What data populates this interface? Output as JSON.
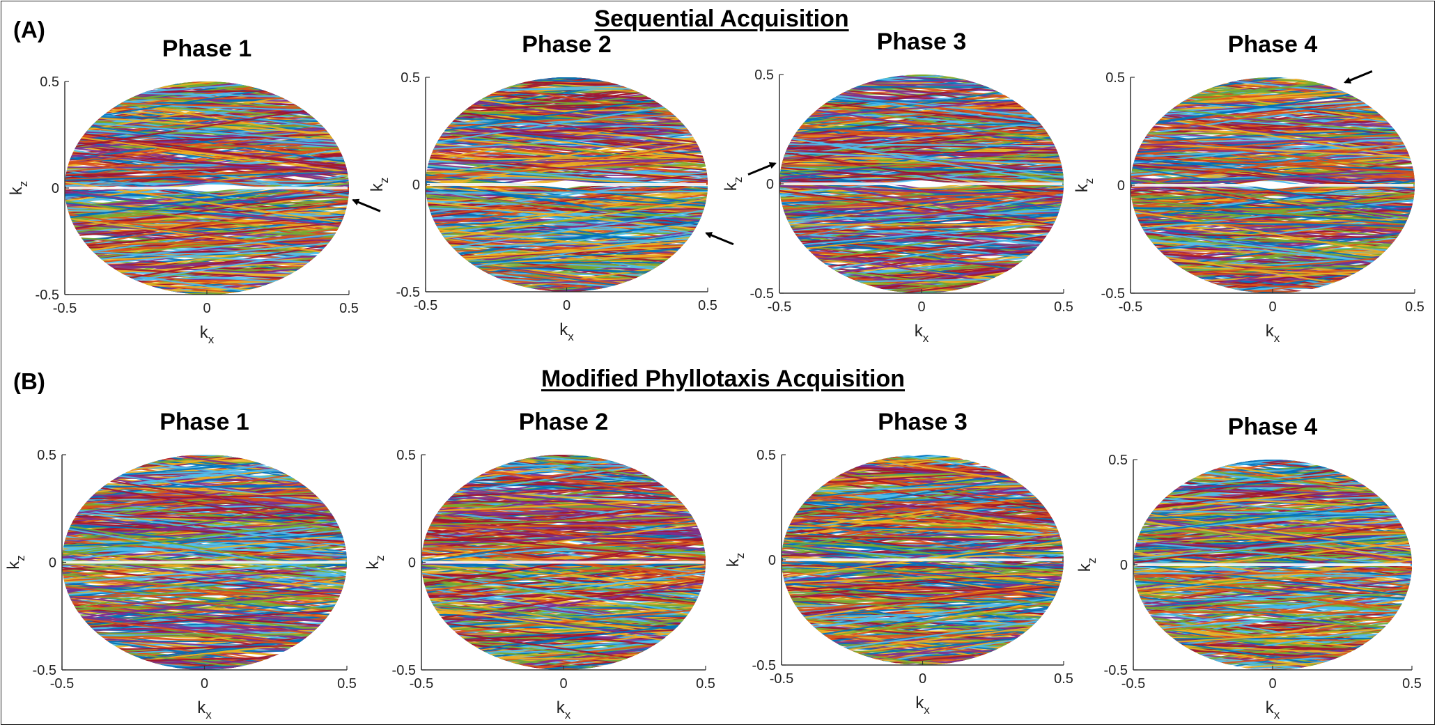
{
  "panels": [
    {
      "label": "(A)",
      "title": "Sequential Acquisition"
    },
    {
      "label": "(B)",
      "title": "Modified Phyllotaxis Acquisition"
    }
  ],
  "colors": [
    "#0072BD",
    "#D95319",
    "#EDB120",
    "#7E2F8E",
    "#77AC30",
    "#4DBEEE",
    "#A2142F"
  ],
  "chart_data": [
    {
      "type": "line",
      "panel": "A",
      "title": "Phase 1",
      "xlabel": "k",
      "xlabel_sub": "x",
      "ylabel": "k",
      "ylabel_sub": "z",
      "xlim": [
        -0.5,
        0.5
      ],
      "ylim": [
        -0.5,
        0.5
      ],
      "xticks": [
        "-0.5",
        "0",
        "0.5"
      ],
      "yticks": [
        "0.5",
        "0",
        "-0.5"
      ],
      "description_kind": "sequential",
      "arrows": [
        {
          "x": 0.5,
          "y": -0.05
        }
      ]
    },
    {
      "type": "line",
      "panel": "A",
      "title": "Phase 2",
      "xlabel": "k",
      "xlabel_sub": "x",
      "ylabel": "k",
      "ylabel_sub": "z",
      "xlim": [
        -0.5,
        0.5
      ],
      "ylim": [
        -0.5,
        0.5
      ],
      "xticks": [
        "-0.5",
        "0",
        "0.5"
      ],
      "yticks": [
        "0.5",
        "0",
        "-0.5"
      ],
      "description_kind": "sequential",
      "arrows": [
        {
          "x": 0.48,
          "y": -0.22
        }
      ]
    },
    {
      "type": "line",
      "panel": "A",
      "title": "Phase 3",
      "xlabel": "k",
      "xlabel_sub": "x",
      "ylabel": "k",
      "ylabel_sub": "z",
      "xlim": [
        -0.5,
        0.5
      ],
      "ylim": [
        -0.5,
        0.5
      ],
      "xticks": [
        "-0.5",
        "0",
        "0.5"
      ],
      "yticks": [
        "0.5",
        "0",
        "-0.5"
      ],
      "description_kind": "sequential",
      "arrows": [
        {
          "x": -0.5,
          "y": 0.1
        }
      ]
    },
    {
      "type": "line",
      "panel": "A",
      "title": "Phase 4",
      "xlabel": "k",
      "xlabel_sub": "x",
      "ylabel": "k",
      "ylabel_sub": "z",
      "xlim": [
        -0.5,
        0.5
      ],
      "ylim": [
        -0.5,
        0.5
      ],
      "xticks": [
        "-0.5",
        "0",
        "0.5"
      ],
      "yticks": [
        "0.5",
        "0",
        "-0.5"
      ],
      "description_kind": "sequential",
      "arrows": [
        {
          "x": 0.24,
          "y": 0.47
        }
      ]
    },
    {
      "type": "line",
      "panel": "B",
      "title": "Phase 1",
      "xlabel": "k",
      "xlabel_sub": "x",
      "ylabel": "k",
      "ylabel_sub": "z",
      "xlim": [
        -0.5,
        0.5
      ],
      "ylim": [
        -0.5,
        0.5
      ],
      "xticks": [
        "-0.5",
        "0",
        "0.5"
      ],
      "yticks": [
        "0.5",
        "0",
        "-0.5"
      ],
      "description_kind": "phyllotaxis",
      "arrows": []
    },
    {
      "type": "line",
      "panel": "B",
      "title": "Phase 2",
      "xlabel": "k",
      "xlabel_sub": "x",
      "ylabel": "k",
      "ylabel_sub": "z",
      "xlim": [
        -0.5,
        0.5
      ],
      "ylim": [
        -0.5,
        0.5
      ],
      "xticks": [
        "-0.5",
        "0",
        "0.5"
      ],
      "yticks": [
        "0.5",
        "0",
        "-0.5"
      ],
      "description_kind": "phyllotaxis",
      "arrows": []
    },
    {
      "type": "line",
      "panel": "B",
      "title": "Phase 3",
      "xlabel": "k",
      "xlabel_sub": "x",
      "ylabel": "k",
      "ylabel_sub": "z",
      "xlim": [
        -0.5,
        0.5
      ],
      "ylim": [
        -0.5,
        0.5
      ],
      "xticks": [
        "-0.5",
        "0",
        "0.5"
      ],
      "yticks": [
        "0.5",
        "0",
        "-0.5"
      ],
      "description_kind": "phyllotaxis",
      "arrows": []
    },
    {
      "type": "line",
      "panel": "B",
      "title": "Phase 4",
      "xlabel": "k",
      "xlabel_sub": "x",
      "ylabel": "k",
      "ylabel_sub": "z",
      "xlim": [
        -0.5,
        0.5
      ],
      "ylim": [
        -0.5,
        0.5
      ],
      "xticks": [
        "-0.5",
        "0",
        "0.5"
      ],
      "yticks": [
        "0.5",
        "0",
        "-0.5"
      ],
      "description_kind": "phyllotaxis",
      "arrows": []
    }
  ]
}
